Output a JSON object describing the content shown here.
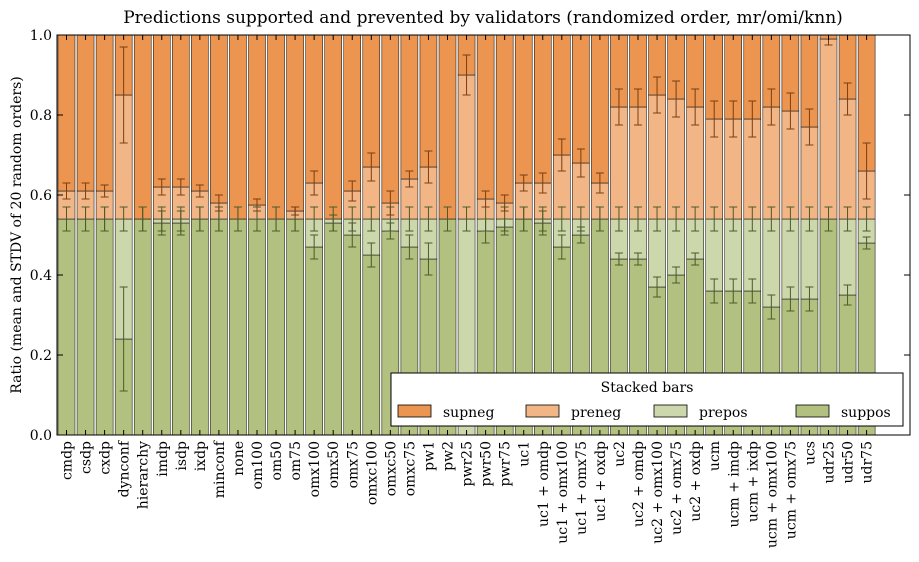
{
  "chart_data": {
    "type": "bar",
    "stacked": true,
    "title": "Predictions supported and prevented by validators (randomized order, mr/omi/knn)",
    "xlabel": "",
    "ylabel": "Ratio (mean and STDV of 20 random orders)",
    "ylim": [
      0,
      1.0
    ],
    "yticks": [
      "0.0",
      "0.2",
      "0.4",
      "0.6",
      "0.8",
      "1.0"
    ],
    "grid": false,
    "legend": {
      "title": "Stacked bars",
      "placement": "bottom-right"
    },
    "categories": [
      "cmdp",
      "csdp",
      "cxdp",
      "dynconf",
      "hierarchy",
      "imdp",
      "isdp",
      "ixdp",
      "minconf",
      "none",
      "om100",
      "om50",
      "om75",
      "omx100",
      "omx50",
      "omx75",
      "omxc100",
      "omxc50",
      "omxc75",
      "pw1",
      "pw2",
      "pwr25",
      "pwr50",
      "pwr75",
      "uc1",
      "uc1 + omdp",
      "uc1 + omx100",
      "uc1 + omx75",
      "uc1 + oxdp",
      "uc2",
      "uc2 + omdp",
      "uc2 + omx100",
      "uc2 + omx75",
      "uc2 + oxdp",
      "ucm",
      "ucm + imdp",
      "ucm + ixdp",
      "ucm + omx100",
      "ucm + omx75",
      "ucs",
      "udr25",
      "udr50",
      "udr75"
    ],
    "series": [
      {
        "name": "suppos",
        "color": "#b2c17f",
        "values": [
          0.54,
          0.54,
          0.54,
          0.24,
          0.54,
          0.53,
          0.53,
          0.54,
          0.54,
          0.54,
          0.54,
          0.54,
          0.54,
          0.47,
          0.53,
          0.5,
          0.45,
          0.51,
          0.47,
          0.44,
          0.54,
          0.0,
          0.51,
          0.52,
          0.54,
          0.53,
          0.47,
          0.5,
          0.54,
          0.44,
          0.44,
          0.37,
          0.4,
          0.44,
          0.36,
          0.36,
          0.36,
          0.32,
          0.34,
          0.34,
          0.54,
          0.35,
          0.48
        ],
        "errors": [
          0.03,
          0.03,
          0.03,
          0.13,
          0.03,
          0.03,
          0.03,
          0.03,
          0.03,
          0.03,
          0.03,
          0.03,
          0.03,
          0.03,
          0.02,
          0.03,
          0.03,
          0.02,
          0.03,
          0.04,
          0.03,
          0.0,
          0.03,
          0.02,
          0.03,
          0.03,
          0.03,
          0.02,
          0.03,
          0.015,
          0.015,
          0.025,
          0.02,
          0.015,
          0.03,
          0.03,
          0.03,
          0.03,
          0.03,
          0.03,
          0.03,
          0.025,
          0.015
        ]
      },
      {
        "name": "prepos",
        "color": "#cdd7ac",
        "values": [
          0.0,
          0.0,
          0.0,
          0.3,
          0.0,
          0.01,
          0.01,
          0.0,
          0.0,
          0.0,
          0.0,
          0.0,
          0.0,
          0.07,
          0.01,
          0.04,
          0.09,
          0.03,
          0.07,
          0.1,
          0.0,
          0.54,
          0.03,
          0.02,
          0.0,
          0.01,
          0.07,
          0.04,
          0.0,
          0.1,
          0.1,
          0.17,
          0.14,
          0.1,
          0.18,
          0.18,
          0.18,
          0.22,
          0.2,
          0.2,
          0.0,
          0.19,
          0.06
        ],
        "errors": [
          0.03,
          0.03,
          0.03,
          0.03,
          0.03,
          0.03,
          0.03,
          0.03,
          0.03,
          0.03,
          0.03,
          0.03,
          0.03,
          0.03,
          0.03,
          0.03,
          0.03,
          0.03,
          0.03,
          0.03,
          0.03,
          0.03,
          0.03,
          0.03,
          0.03,
          0.03,
          0.03,
          0.03,
          0.03,
          0.03,
          0.03,
          0.03,
          0.03,
          0.03,
          0.03,
          0.03,
          0.03,
          0.03,
          0.03,
          0.03,
          0.03,
          0.03,
          0.03
        ]
      },
      {
        "name": "preneg",
        "color": "#f2b686",
        "values": [
          0.07,
          0.07,
          0.07,
          0.31,
          0.0,
          0.08,
          0.08,
          0.07,
          0.04,
          0.0,
          0.035,
          0.0,
          0.02,
          0.09,
          0.0,
          0.07,
          0.13,
          0.04,
          0.1,
          0.13,
          0.0,
          0.36,
          0.05,
          0.04,
          0.09,
          0.09,
          0.16,
          0.14,
          0.09,
          0.28,
          0.28,
          0.31,
          0.3,
          0.28,
          0.25,
          0.25,
          0.25,
          0.28,
          0.27,
          0.23,
          0.45,
          0.3,
          0.12
        ],
        "errors": [
          0.02,
          0.02,
          0.015,
          0.12,
          0.0,
          0.02,
          0.02,
          0.015,
          0.02,
          0.0,
          0.015,
          0.0,
          0.01,
          0.03,
          0.0,
          0.025,
          0.035,
          0.03,
          0.02,
          0.04,
          0.0,
          0.05,
          0.02,
          0.02,
          0.02,
          0.025,
          0.04,
          0.035,
          0.025,
          0.045,
          0.045,
          0.045,
          0.045,
          0.045,
          0.045,
          0.045,
          0.045,
          0.045,
          0.045,
          0.045,
          0.015,
          0.04,
          0.07
        ]
      },
      {
        "name": "supneg",
        "color": "#eb9550",
        "values": [
          0.39,
          0.39,
          0.39,
          0.15,
          0.46,
          0.38,
          0.38,
          0.39,
          0.42,
          0.46,
          0.425,
          0.46,
          0.44,
          0.37,
          0.46,
          0.39,
          0.33,
          0.42,
          0.36,
          0.33,
          0.46,
          0.1,
          0.41,
          0.42,
          0.37,
          0.37,
          0.3,
          0.32,
          0.37,
          0.18,
          0.18,
          0.15,
          0.16,
          0.18,
          0.21,
          0.21,
          0.21,
          0.18,
          0.19,
          0.23,
          0.01,
          0.16,
          0.34
        ],
        "errors": [
          0,
          0,
          0,
          0,
          0,
          0,
          0,
          0,
          0,
          0,
          0,
          0,
          0,
          0,
          0,
          0,
          0,
          0,
          0,
          0,
          0,
          0,
          0,
          0,
          0,
          0,
          0,
          0,
          0,
          0,
          0,
          0,
          0,
          0,
          0,
          0,
          0,
          0,
          0,
          0,
          0,
          0,
          0
        ]
      }
    ]
  }
}
